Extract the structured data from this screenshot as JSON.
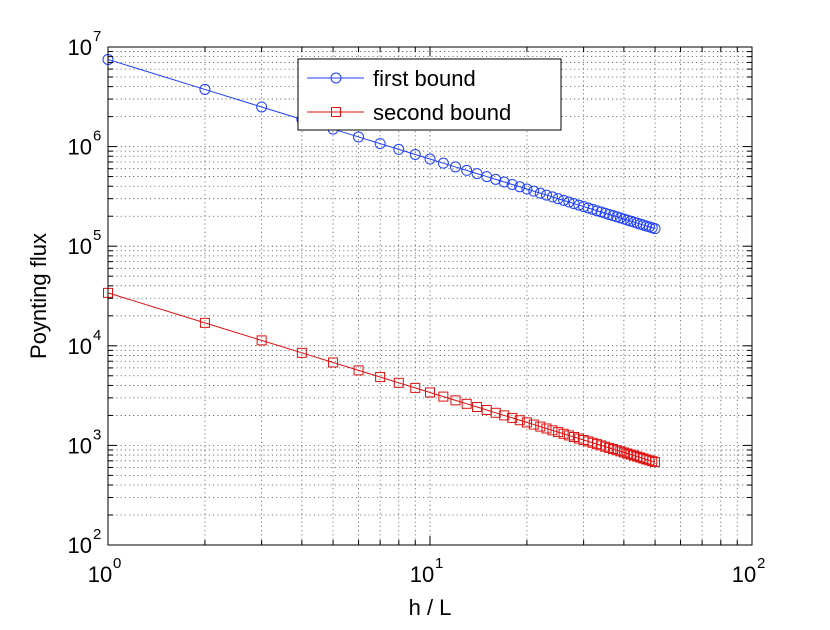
{
  "chart_data": {
    "type": "line",
    "title": "",
    "xlabel": "h / L",
    "ylabel": "Poynting flux",
    "xscale": "log",
    "yscale": "log",
    "xlim": [
      1,
      100
    ],
    "ylim": [
      100,
      10000000
    ],
    "grid": true,
    "legend_position": "top-center",
    "x_ticks": [
      {
        "base": "10",
        "exp": "0",
        "value": 1
      },
      {
        "base": "10",
        "exp": "1",
        "value": 10
      },
      {
        "base": "10",
        "exp": "2",
        "value": 100
      }
    ],
    "y_ticks": [
      {
        "base": "10",
        "exp": "2",
        "value": 100
      },
      {
        "base": "10",
        "exp": "3",
        "value": 1000
      },
      {
        "base": "10",
        "exp": "4",
        "value": 10000
      },
      {
        "base": "10",
        "exp": "5",
        "value": 100000
      },
      {
        "base": "10",
        "exp": "6",
        "value": 1000000
      },
      {
        "base": "10",
        "exp": "7",
        "value": 10000000
      }
    ],
    "x": [
      1,
      2,
      3,
      4,
      5,
      6,
      7,
      8,
      9,
      10,
      11,
      12,
      13,
      14,
      15,
      16,
      17,
      18,
      19,
      20,
      21,
      22,
      23,
      24,
      25,
      26,
      27,
      28,
      29,
      30,
      31,
      32,
      33,
      34,
      35,
      36,
      37,
      38,
      39,
      40,
      41,
      42,
      43,
      44,
      45,
      46,
      47,
      48,
      49,
      50
    ],
    "series": [
      {
        "name": "first bound",
        "color": "#1f3fff",
        "marker": "circle",
        "values": [
          7500000,
          3750000,
          2500000,
          1875000,
          1500000,
          1250000,
          1071429,
          937500,
          833333,
          750000,
          681818,
          625000,
          576923,
          535714,
          500000,
          468750,
          441176,
          416667,
          394737,
          375000,
          357143,
          340909,
          326087,
          312500,
          300000,
          288462,
          277778,
          267857,
          258621,
          250000,
          241935,
          234375,
          227273,
          220588,
          214286,
          208333,
          202703,
          197368,
          192308,
          187500,
          182927,
          178571,
          174419,
          170455,
          166667,
          163043,
          159574,
          156250,
          153061,
          150000
        ]
      },
      {
        "name": "second bound",
        "color": "#e01010",
        "marker": "square",
        "values": [
          34000,
          17000,
          11333,
          8500,
          6800,
          5667,
          4857,
          4250,
          3778,
          3400,
          3091,
          2833,
          2615,
          2429,
          2267,
          2125,
          2000,
          1889,
          1789,
          1700,
          1619,
          1545,
          1478,
          1417,
          1360,
          1308,
          1259,
          1214,
          1172,
          1133,
          1097,
          1063,
          1030,
          1000,
          971,
          944,
          919,
          895,
          872,
          850,
          829,
          810,
          791,
          773,
          756,
          739,
          723,
          708,
          694,
          680
        ]
      }
    ]
  }
}
